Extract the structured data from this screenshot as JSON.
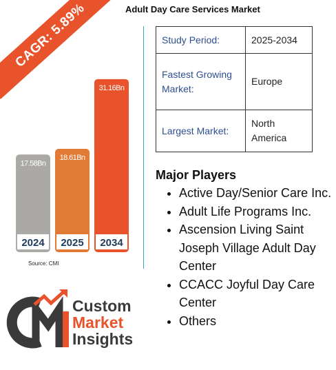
{
  "title": "Adult Day Care Services Market",
  "cagr_label": "CAGR: 5.89%",
  "source": "Source: CMI",
  "chart_data": {
    "type": "bar",
    "categories": [
      "2024",
      "2025",
      "2034"
    ],
    "values": [
      17.58,
      18.61,
      31.16
    ],
    "value_labels": [
      "17.58Bn",
      "18.61Bn",
      "31.16Bn"
    ],
    "colors": [
      "#aba9a5",
      "#e07a35",
      "#e8532b"
    ],
    "ylim": [
      0,
      33
    ]
  },
  "info": {
    "rows": [
      {
        "key": "Study Period:",
        "value": "2025-2034"
      },
      {
        "key": "Fastest Growing Market:",
        "value": "Europe"
      },
      {
        "key": "Largest Market:",
        "value": "North America"
      }
    ]
  },
  "players": {
    "heading": "Major Players",
    "items": [
      "Active Day/Senior Care Inc.",
      "Adult Life Programs Inc.",
      "Ascension Living Saint Joseph Village Adult Day Center",
      "CCACC Joyful Day Care Center",
      "Others"
    ]
  },
  "logo": {
    "line1": "Custom",
    "line2": "Market",
    "line3": "Insights",
    "mark": "CMI"
  },
  "colors": {
    "accent": "#e8532b",
    "divider": "#3aa6b9",
    "key_text": "#2e4e8f",
    "logo_dark": "#3a3a3a"
  }
}
